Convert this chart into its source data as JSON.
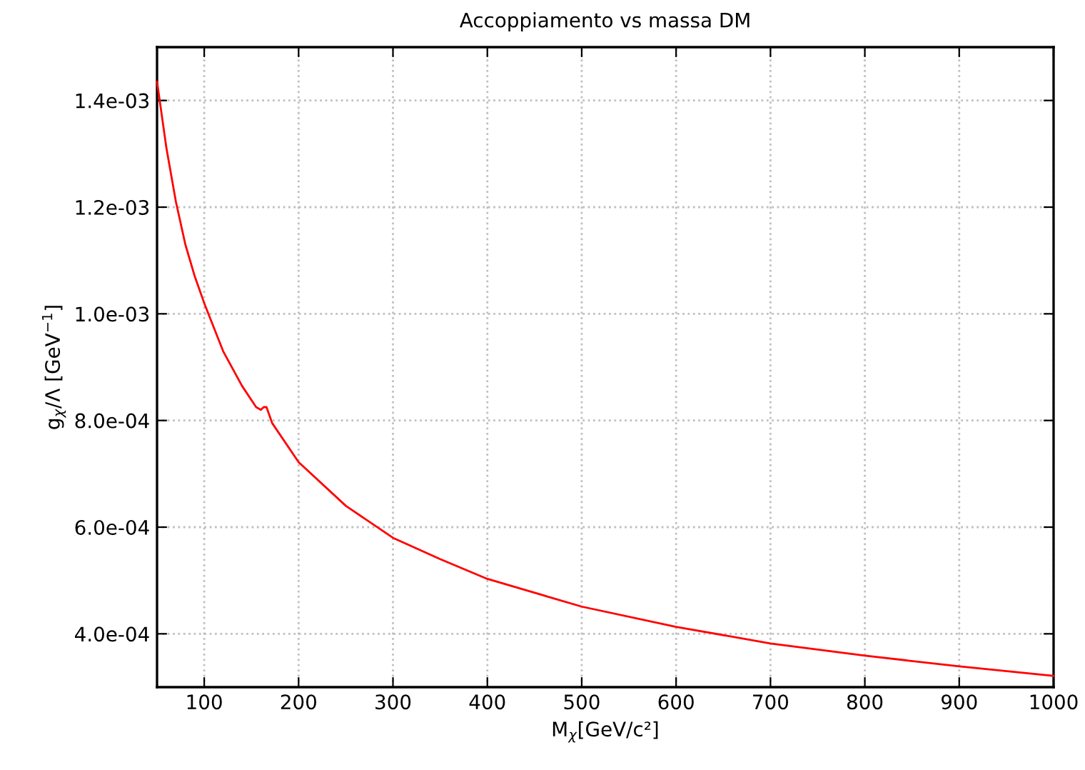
{
  "chart_data": {
    "type": "line",
    "title": "Accoppiamento vs massa DM",
    "xlabel": "M$_{χ}$[GeV/c²]",
    "ylabel": "g$_{χ}$/Λ [GeV$^{−1}$]",
    "series": [
      {
        "color": "#ff0000",
        "x": [
          50,
          60,
          70,
          80,
          90,
          100,
          120,
          140,
          155,
          160,
          163,
          166,
          172,
          200,
          250,
          300,
          350,
          400,
          500,
          600,
          700,
          800,
          900,
          1000
        ],
        "values": [
          0.001435,
          0.00131,
          0.00121,
          0.00113,
          0.00107,
          0.00102,
          0.00093,
          0.000865,
          0.000825,
          0.00082,
          0.000825,
          0.000825,
          0.000795,
          0.000722,
          0.00064,
          0.00058,
          0.00054,
          0.000503,
          0.000451,
          0.000413,
          0.000382,
          0.000359,
          0.000339,
          0.000321
        ]
      }
    ],
    "xlim": [
      50,
      1000
    ],
    "ylim": [
      0.0003,
      0.0015
    ],
    "xticks": [
      100,
      200,
      300,
      400,
      500,
      600,
      700,
      800,
      900,
      1000
    ],
    "yticks": [
      {
        "value": 0.0004,
        "label": "4.0e-04"
      },
      {
        "value": 0.0006,
        "label": "6.0e-04"
      },
      {
        "value": 0.0008,
        "label": "8.0e-04"
      },
      {
        "value": 0.001,
        "label": "1.0e-03"
      },
      {
        "value": 0.0012,
        "label": "1.2e-03"
      },
      {
        "value": 0.0014,
        "label": "1.4e-03"
      }
    ],
    "grid": true,
    "line_style": "solid"
  }
}
